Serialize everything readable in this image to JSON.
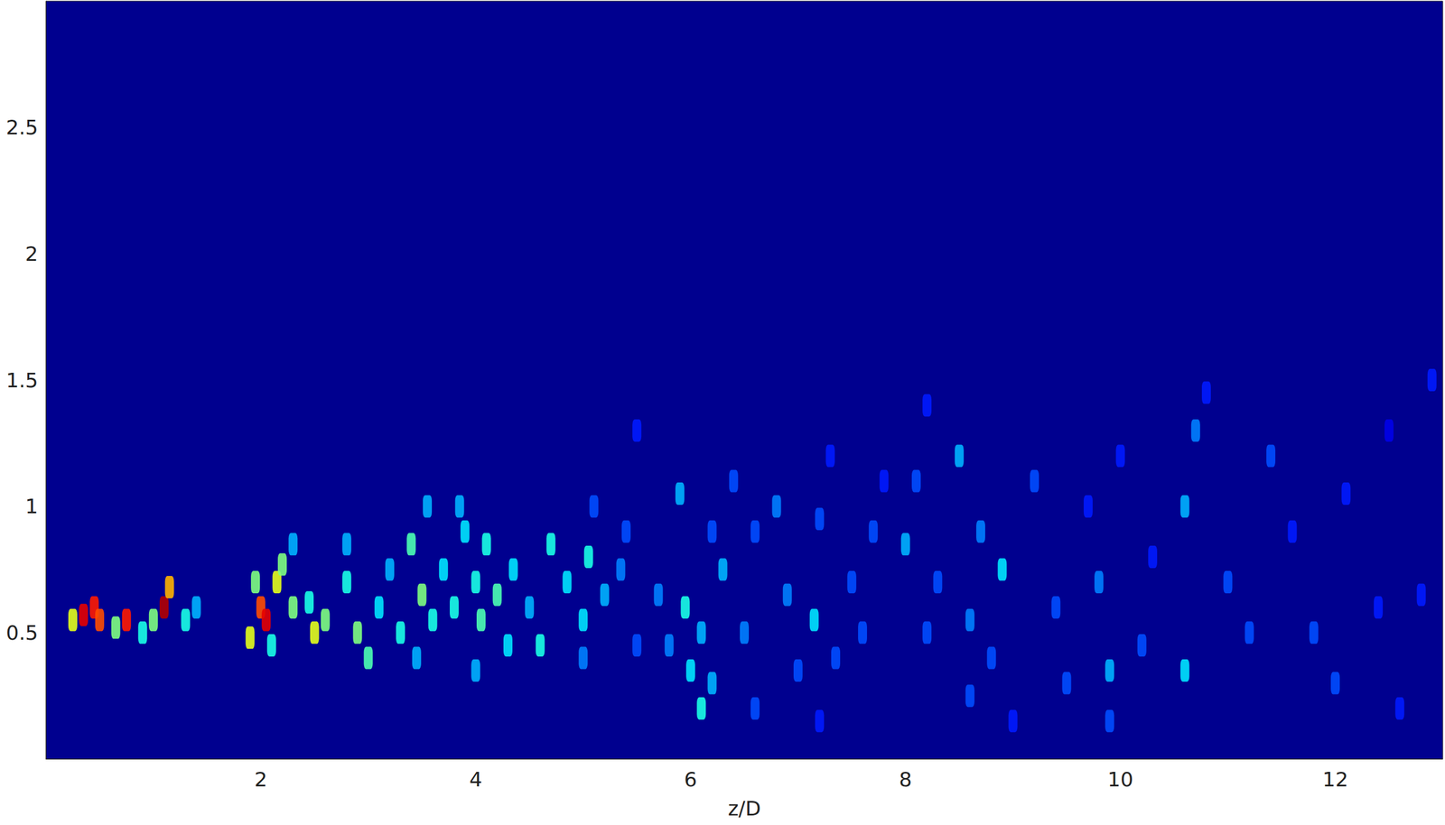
{
  "chart_data": {
    "type": "scatter",
    "x_label": "z/D",
    "xlim": [
      0,
      13
    ],
    "xticks": [
      2,
      4,
      6,
      8,
      10,
      12
    ],
    "ylim": [
      0,
      3
    ],
    "yticks": [
      0.5,
      1,
      1.5,
      2,
      2.5
    ],
    "grid": false,
    "marker": "rect",
    "color_range": [
      0,
      1
    ],
    "cells": [
      [
        0.35,
        0.57,
        0.9
      ],
      [
        0.45,
        0.6,
        0.85
      ],
      [
        0.5,
        0.55,
        0.8
      ],
      [
        0.25,
        0.55,
        0.6
      ],
      [
        0.75,
        0.55,
        0.85
      ],
      [
        0.65,
        0.52,
        0.5
      ],
      [
        1.1,
        0.6,
        0.95
      ],
      [
        1.15,
        0.68,
        0.7
      ],
      [
        1.0,
        0.55,
        0.5
      ],
      [
        0.9,
        0.5,
        0.4
      ],
      [
        1.3,
        0.55,
        0.4
      ],
      [
        1.4,
        0.6,
        0.3
      ],
      [
        2.0,
        0.6,
        0.8
      ],
      [
        2.05,
        0.55,
        0.9
      ],
      [
        1.9,
        0.48,
        0.6
      ],
      [
        1.95,
        0.7,
        0.5
      ],
      [
        2.15,
        0.7,
        0.6
      ],
      [
        2.2,
        0.77,
        0.5
      ],
      [
        2.3,
        0.6,
        0.5
      ],
      [
        2.5,
        0.5,
        0.6
      ],
      [
        2.45,
        0.62,
        0.4
      ],
      [
        2.6,
        0.55,
        0.5
      ],
      [
        2.3,
        0.85,
        0.3
      ],
      [
        2.1,
        0.45,
        0.4
      ],
      [
        2.8,
        0.7,
        0.4
      ],
      [
        2.9,
        0.5,
        0.5
      ],
      [
        3.0,
        0.4,
        0.45
      ],
      [
        3.1,
        0.6,
        0.35
      ],
      [
        3.2,
        0.75,
        0.3
      ],
      [
        3.3,
        0.5,
        0.4
      ],
      [
        3.4,
        0.85,
        0.45
      ],
      [
        3.5,
        0.65,
        0.5
      ],
      [
        3.6,
        0.55,
        0.4
      ],
      [
        3.55,
        1.0,
        0.3
      ],
      [
        3.45,
        0.4,
        0.3
      ],
      [
        3.7,
        0.75,
        0.35
      ],
      [
        2.8,
        0.85,
        0.3
      ],
      [
        3.8,
        0.6,
        0.4
      ],
      [
        3.9,
        0.9,
        0.35
      ],
      [
        4.0,
        0.7,
        0.4
      ],
      [
        4.05,
        0.55,
        0.45
      ],
      [
        4.1,
        0.85,
        0.4
      ],
      [
        4.2,
        0.65,
        0.45
      ],
      [
        4.3,
        0.45,
        0.35
      ],
      [
        4.35,
        0.75,
        0.35
      ],
      [
        4.5,
        0.6,
        0.3
      ],
      [
        4.0,
        0.35,
        0.3
      ],
      [
        3.85,
        1.0,
        0.3
      ],
      [
        4.6,
        0.45,
        0.4
      ],
      [
        4.7,
        0.85,
        0.4
      ],
      [
        4.85,
        0.7,
        0.35
      ],
      [
        5.0,
        0.55,
        0.35
      ],
      [
        5.05,
        0.8,
        0.4
      ],
      [
        5.2,
        0.65,
        0.3
      ],
      [
        5.0,
        0.4,
        0.25
      ],
      [
        5.35,
        0.75,
        0.25
      ],
      [
        5.1,
        1.0,
        0.2
      ],
      [
        5.5,
        1.3,
        0.15
      ],
      [
        5.5,
        0.45,
        0.2
      ],
      [
        5.4,
        0.9,
        0.2
      ],
      [
        5.7,
        0.65,
        0.25
      ],
      [
        5.8,
        0.45,
        0.25
      ],
      [
        5.9,
        1.05,
        0.3
      ],
      [
        5.95,
        0.6,
        0.4
      ],
      [
        6.0,
        0.35,
        0.35
      ],
      [
        6.1,
        0.2,
        0.4
      ],
      [
        6.1,
        0.5,
        0.3
      ],
      [
        6.2,
        0.3,
        0.3
      ],
      [
        6.3,
        0.75,
        0.3
      ],
      [
        6.4,
        1.1,
        0.2
      ],
      [
        6.5,
        0.5,
        0.25
      ],
      [
        6.6,
        0.2,
        0.2
      ],
      [
        6.6,
        0.9,
        0.2
      ],
      [
        6.2,
        0.9,
        0.2
      ],
      [
        6.8,
        1.0,
        0.25
      ],
      [
        6.9,
        0.65,
        0.25
      ],
      [
        7.0,
        0.35,
        0.2
      ],
      [
        7.15,
        0.55,
        0.35
      ],
      [
        7.2,
        0.95,
        0.2
      ],
      [
        7.3,
        1.2,
        0.15
      ],
      [
        7.35,
        0.4,
        0.2
      ],
      [
        7.5,
        0.7,
        0.2
      ],
      [
        7.6,
        0.5,
        0.2
      ],
      [
        7.7,
        0.9,
        0.2
      ],
      [
        7.2,
        0.15,
        0.15
      ],
      [
        7.8,
        1.1,
        0.15
      ],
      [
        8.0,
        0.85,
        0.3
      ],
      [
        8.1,
        1.1,
        0.2
      ],
      [
        8.2,
        0.5,
        0.2
      ],
      [
        8.3,
        0.7,
        0.2
      ],
      [
        8.5,
        1.2,
        0.3
      ],
      [
        8.6,
        0.55,
        0.25
      ],
      [
        8.6,
        0.25,
        0.2
      ],
      [
        8.7,
        0.9,
        0.25
      ],
      [
        8.9,
        0.75,
        0.35
      ],
      [
        8.8,
        0.4,
        0.2
      ],
      [
        8.2,
        1.4,
        0.15
      ],
      [
        9.0,
        0.15,
        0.15
      ],
      [
        9.2,
        1.1,
        0.2
      ],
      [
        9.4,
        0.6,
        0.2
      ],
      [
        9.5,
        0.3,
        0.2
      ],
      [
        9.7,
        1.0,
        0.15
      ],
      [
        9.8,
        0.7,
        0.25
      ],
      [
        9.9,
        0.35,
        0.3
      ],
      [
        9.9,
        0.15,
        0.2
      ],
      [
        10.0,
        1.2,
        0.15
      ],
      [
        10.2,
        0.45,
        0.2
      ],
      [
        10.3,
        0.8,
        0.15
      ],
      [
        10.6,
        1.0,
        0.3
      ],
      [
        10.7,
        1.3,
        0.25
      ],
      [
        10.8,
        1.45,
        0.15
      ],
      [
        10.6,
        0.35,
        0.35
      ],
      [
        11.0,
        0.7,
        0.2
      ],
      [
        11.2,
        0.5,
        0.2
      ],
      [
        11.4,
        1.2,
        0.2
      ],
      [
        11.6,
        0.9,
        0.15
      ],
      [
        11.8,
        0.5,
        0.2
      ],
      [
        12.0,
        0.3,
        0.2
      ],
      [
        12.1,
        1.05,
        0.15
      ],
      [
        12.4,
        0.6,
        0.15
      ],
      [
        12.6,
        0.2,
        0.15
      ],
      [
        12.8,
        0.65,
        0.15
      ],
      [
        12.9,
        1.5,
        0.15
      ],
      [
        12.5,
        1.3,
        0.1
      ]
    ]
  }
}
